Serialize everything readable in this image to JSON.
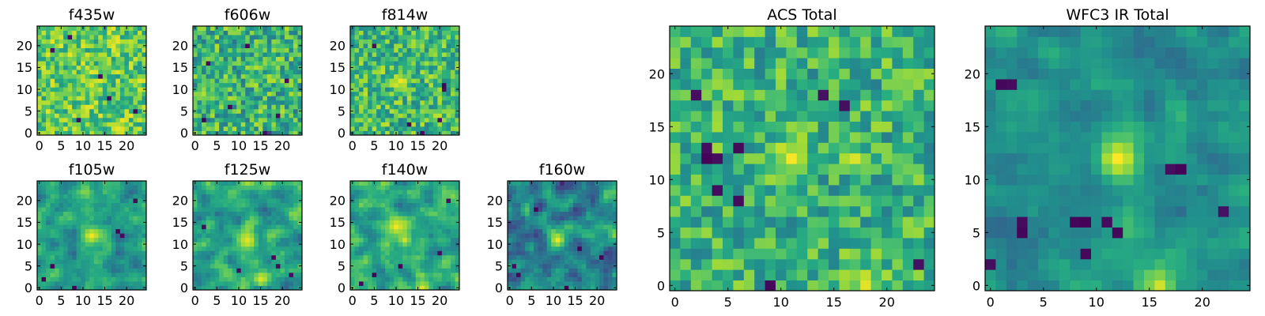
{
  "colormap": "viridis",
  "colors": {
    "low": "#440154",
    "mid": "#21918c",
    "high": "#fde725",
    "background": "#ffffff"
  },
  "chart_data": [
    {
      "type": "heatmap",
      "title": "f435w",
      "xlim": [
        -0.5,
        24.5
      ],
      "ylim": [
        -0.5,
        24.5
      ],
      "xticks": [
        0,
        5,
        10,
        15,
        20
      ],
      "yticks": [
        0,
        5,
        10,
        15,
        20
      ],
      "grid_size": [
        25,
        25
      ],
      "texture": "uniform noise, mostly green-yellow",
      "levels": {
        "background": 0.75,
        "peak": 0.78,
        "noise": 0.22,
        "smoothness": 0.1
      },
      "features": [
        {
          "x": 12,
          "y": 11,
          "value": 0.95,
          "sigma": 1.0
        },
        {
          "x": 18,
          "y": 1,
          "value": 0.98,
          "sigma": 1.2
        }
      ],
      "dark_pixels": [
        [
          9,
          3
        ],
        [
          14,
          13
        ],
        [
          3,
          19
        ],
        [
          22,
          5
        ],
        [
          7,
          22
        ],
        [
          16,
          8
        ]
      ]
    },
    {
      "type": "heatmap",
      "title": "f606w",
      "xlim": [
        -0.5,
        24.5
      ],
      "ylim": [
        -0.5,
        24.5
      ],
      "xticks": [
        0,
        5,
        10,
        15,
        20
      ],
      "yticks": [
        0,
        5,
        10,
        15,
        20
      ],
      "grid_size": [
        25,
        25
      ],
      "texture": "uniform noise, mixed green-yellow",
      "levels": {
        "background": 0.65,
        "peak": 0.7,
        "noise": 0.25,
        "smoothness": 0.1
      },
      "features": [
        {
          "x": 17,
          "y": 0,
          "value": 0.2,
          "sigma": 0.6
        }
      ],
      "dark_pixels": [
        [
          3,
          16
        ],
        [
          8,
          6
        ],
        [
          16,
          0
        ],
        [
          21,
          12
        ],
        [
          12,
          20
        ],
        [
          2,
          3
        ],
        [
          19,
          4
        ]
      ]
    },
    {
      "type": "heatmap",
      "title": "f814w",
      "xlim": [
        -0.5,
        24.5
      ],
      "ylim": [
        -0.5,
        24.5
      ],
      "xticks": [
        0,
        5,
        10,
        15,
        20
      ],
      "yticks": [
        0,
        5,
        10,
        15,
        20
      ],
      "grid_size": [
        25,
        25
      ],
      "texture": "noise with a faint bright source near center",
      "levels": {
        "background": 0.68,
        "peak": 0.95,
        "noise": 0.23,
        "smoothness": 0.15
      },
      "features": [
        {
          "x": 11,
          "y": 12,
          "value": 0.98,
          "sigma": 1.3
        }
      ],
      "dark_pixels": [
        [
          21,
          10
        ],
        [
          21,
          11
        ],
        [
          13,
          2
        ],
        [
          20,
          3
        ],
        [
          16,
          0
        ],
        [
          5,
          20
        ]
      ]
    },
    {
      "type": "heatmap",
      "title": "f105w",
      "xlim": [
        -0.5,
        24.5
      ],
      "ylim": [
        -0.5,
        24.5
      ],
      "xticks": [
        0,
        5,
        10,
        15,
        20
      ],
      "yticks": [
        0,
        5,
        10,
        15,
        20
      ],
      "grid_size": [
        25,
        25
      ],
      "texture": "smoother noise, bright source near center",
      "levels": {
        "background": 0.55,
        "peak": 0.97,
        "noise": 0.24,
        "smoothness": 0.55
      },
      "features": [
        {
          "x": 12,
          "y": 12,
          "value": 0.98,
          "sigma": 1.6
        }
      ],
      "dark_pixels": [
        [
          3,
          5
        ],
        [
          18,
          13
        ],
        [
          19,
          12
        ],
        [
          8,
          0
        ],
        [
          1,
          2
        ],
        [
          22,
          20
        ]
      ]
    },
    {
      "type": "heatmap",
      "title": "f125w",
      "xlim": [
        -0.5,
        24.5
      ],
      "ylim": [
        -0.5,
        24.5
      ],
      "xticks": [
        0,
        5,
        10,
        15,
        20
      ],
      "yticks": [
        0,
        5,
        10,
        15,
        20
      ],
      "grid_size": [
        25,
        25
      ],
      "texture": "smoother noise, bright source near center",
      "levels": {
        "background": 0.58,
        "peak": 0.96,
        "noise": 0.25,
        "smoothness": 0.55
      },
      "features": [
        {
          "x": 12,
          "y": 11,
          "value": 0.96,
          "sigma": 1.8
        },
        {
          "x": 15,
          "y": 2,
          "value": 0.95,
          "sigma": 1.3
        }
      ],
      "dark_pixels": [
        [
          10,
          4
        ],
        [
          18,
          7
        ],
        [
          19,
          5
        ],
        [
          2,
          14
        ],
        [
          22,
          3
        ]
      ]
    },
    {
      "type": "heatmap",
      "title": "f140w",
      "xlim": [
        -0.5,
        24.5
      ],
      "ylim": [
        -0.5,
        24.5
      ],
      "xticks": [
        0,
        5,
        10,
        15,
        20
      ],
      "yticks": [
        0,
        5,
        10,
        15,
        20
      ],
      "grid_size": [
        25,
        25
      ],
      "texture": "smoother noise, bright elongated source",
      "levels": {
        "background": 0.6,
        "peak": 0.97,
        "noise": 0.23,
        "smoothness": 0.5
      },
      "features": [
        {
          "x": 10,
          "y": 14,
          "value": 0.98,
          "sigma": 1.6
        },
        {
          "x": 12,
          "y": 11,
          "value": 0.93,
          "sigma": 1.3
        },
        {
          "x": 16,
          "y": 0,
          "value": 0.96,
          "sigma": 1.2
        }
      ],
      "dark_pixels": [
        [
          2,
          1
        ],
        [
          11,
          5
        ],
        [
          20,
          8
        ],
        [
          22,
          20
        ],
        [
          5,
          3
        ]
      ]
    },
    {
      "type": "heatmap",
      "title": "f160w",
      "xlim": [
        -0.5,
        24.5
      ],
      "ylim": [
        -0.5,
        24.5
      ],
      "xticks": [
        0,
        5,
        10,
        15,
        20
      ],
      "yticks": [
        0,
        5,
        10,
        15,
        20
      ],
      "grid_size": [
        25,
        25
      ],
      "texture": "darker smoother noise, bright source near center",
      "levels": {
        "background": 0.45,
        "peak": 0.96,
        "noise": 0.27,
        "smoothness": 0.5
      },
      "features": [
        {
          "x": 11,
          "y": 11,
          "value": 0.98,
          "sigma": 1.5
        }
      ],
      "dark_pixels": [
        [
          1,
          5
        ],
        [
          2,
          3
        ],
        [
          13,
          0
        ],
        [
          16,
          9
        ],
        [
          21,
          7
        ],
        [
          6,
          18
        ]
      ]
    },
    {
      "type": "heatmap",
      "title": "ACS Total",
      "xlim": [
        -0.5,
        24.5
      ],
      "ylim": [
        -0.5,
        24.5
      ],
      "xticks": [
        0,
        5,
        10,
        15,
        20
      ],
      "yticks": [
        0,
        5,
        10,
        15,
        20
      ],
      "grid_size": [
        25,
        25
      ],
      "texture": "coarse pixel noise, mostly green-yellow with bright source",
      "levels": {
        "background": 0.65,
        "peak": 0.8,
        "noise": 0.22,
        "smoothness": 0.12
      },
      "features": [
        {
          "x": 11,
          "y": 12,
          "value": 0.99,
          "sigma": 1.1
        },
        {
          "x": 17,
          "y": 12,
          "value": 0.95,
          "sigma": 0.7
        },
        {
          "x": 18,
          "y": 0,
          "value": 0.96,
          "sigma": 1.0
        }
      ],
      "dark_pixels": [
        [
          3,
          12
        ],
        [
          4,
          12
        ],
        [
          3,
          13
        ],
        [
          6,
          13
        ],
        [
          14,
          18
        ],
        [
          16,
          17
        ],
        [
          4,
          9
        ],
        [
          6,
          8
        ],
        [
          9,
          0
        ],
        [
          23,
          2
        ],
        [
          2,
          18
        ]
      ]
    },
    {
      "type": "heatmap",
      "title": "WFC3 IR Total",
      "xlim": [
        -0.5,
        24.5
      ],
      "ylim": [
        -0.5,
        24.5
      ],
      "xticks": [
        0,
        5,
        10,
        15,
        20
      ],
      "yticks": [
        0,
        5,
        10,
        15,
        20
      ],
      "grid_size": [
        25,
        25
      ],
      "texture": "smooth teal field with bright source near center",
      "levels": {
        "background": 0.5,
        "peak": 1.0,
        "noise": 0.18,
        "smoothness": 0.6
      },
      "features": [
        {
          "x": 12,
          "y": 12,
          "value": 1.0,
          "sigma": 1.4
        },
        {
          "x": 16,
          "y": 0,
          "value": 0.93,
          "sigma": 1.2
        }
      ],
      "dark_pixels": [
        [
          3,
          5
        ],
        [
          3,
          6
        ],
        [
          8,
          6
        ],
        [
          9,
          6
        ],
        [
          11,
          6
        ],
        [
          12,
          5
        ],
        [
          9,
          3
        ],
        [
          0,
          2
        ],
        [
          1,
          19
        ],
        [
          2,
          19
        ],
        [
          17,
          11
        ],
        [
          18,
          11
        ],
        [
          22,
          7
        ]
      ]
    }
  ]
}
